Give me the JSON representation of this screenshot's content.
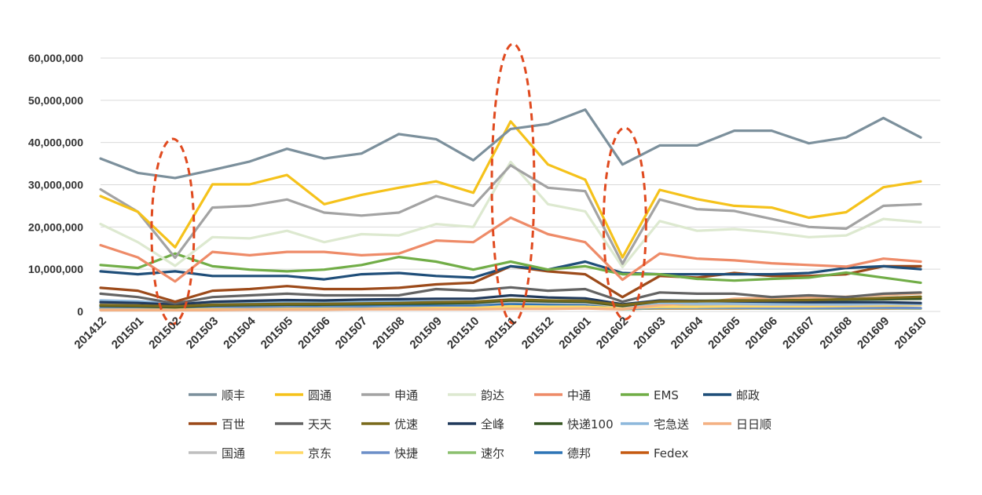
{
  "chart_data": {
    "type": "line",
    "title": "",
    "xlabel": "",
    "ylabel": "",
    "ylim": [
      0,
      60000000
    ],
    "yticks": [
      "0",
      "10,000,000",
      "20,000,000",
      "30,000,000",
      "40,000,000",
      "50,000,000",
      "60,000,000"
    ],
    "ytick_values": [
      0,
      10000000,
      20000000,
      30000000,
      40000000,
      50000000,
      60000000
    ],
    "grid": true,
    "legend_position": "bottom",
    "categories": [
      "201412",
      "201501",
      "201502",
      "201503",
      "201504",
      "201505",
      "201506",
      "201507",
      "201508",
      "201509",
      "201510",
      "201511",
      "201512",
      "201601",
      "201602",
      "201603",
      "201604",
      "201605",
      "201606",
      "201607",
      "201608",
      "201609",
      "201610"
    ],
    "highlighted_categories": [
      "201502",
      "201511",
      "201602"
    ],
    "series": [
      {
        "name": "顺丰",
        "color": "#7c909c",
        "values": [
          36200000,
          32800000,
          31600000,
          33500000,
          35500000,
          38500000,
          36200000,
          37400000,
          42000000,
          40800000,
          35800000,
          43200000,
          44400000,
          47800000,
          34800000,
          39300000,
          39300000,
          42800000,
          42800000,
          39800000,
          41200000,
          45800000,
          41200000
        ]
      },
      {
        "name": "圆通",
        "color": "#f5c21b",
        "values": [
          27300000,
          23600000,
          15200000,
          30100000,
          30100000,
          32300000,
          25400000,
          27600000,
          29300000,
          30800000,
          28100000,
          45000000,
          34800000,
          31200000,
          12800000,
          28800000,
          26600000,
          25000000,
          24600000,
          22200000,
          23500000,
          29400000,
          30800000
        ]
      },
      {
        "name": "申通",
        "color": "#a3a3a3",
        "values": [
          28900000,
          23600000,
          12700000,
          24600000,
          25000000,
          26500000,
          23400000,
          22700000,
          23400000,
          27300000,
          25000000,
          34600000,
          29300000,
          28500000,
          11300000,
          26500000,
          24200000,
          23800000,
          21900000,
          20000000,
          19600000,
          25000000,
          25400000
        ]
      },
      {
        "name": "韵达",
        "color": "#dde9d0",
        "values": [
          20700000,
          16400000,
          10800000,
          17600000,
          17300000,
          19100000,
          16400000,
          18300000,
          18000000,
          20700000,
          20000000,
          35400000,
          25400000,
          23700000,
          10500000,
          21400000,
          19100000,
          19500000,
          18700000,
          17600000,
          18000000,
          21900000,
          21100000
        ]
      },
      {
        "name": "中通",
        "color": "#ee8b68",
        "values": [
          15700000,
          12800000,
          7100000,
          14100000,
          13300000,
          14100000,
          14100000,
          13300000,
          13700000,
          16800000,
          16400000,
          22200000,
          18300000,
          16400000,
          7500000,
          13700000,
          12500000,
          12100000,
          11400000,
          11000000,
          10600000,
          12500000,
          11800000
        ]
      },
      {
        "name": "EMS",
        "color": "#71ad47",
        "values": [
          11000000,
          10300000,
          13700000,
          10700000,
          9900000,
          9500000,
          9900000,
          11000000,
          12900000,
          11800000,
          9900000,
          11800000,
          9900000,
          10700000,
          8800000,
          8800000,
          7700000,
          7300000,
          7700000,
          8000000,
          9200000,
          8000000,
          6800000
        ]
      },
      {
        "name": "邮政",
        "color": "#1f4e79",
        "values": [
          9500000,
          8800000,
          9500000,
          8400000,
          8400000,
          8400000,
          7600000,
          8800000,
          9100000,
          8400000,
          8000000,
          10700000,
          9900000,
          11800000,
          9100000,
          8800000,
          8800000,
          8800000,
          8800000,
          9100000,
          10300000,
          10700000,
          10000000
        ]
      },
      {
        "name": "百世",
        "color": "#9c4a1a",
        "values": [
          5600000,
          4900000,
          2300000,
          4900000,
          5300000,
          6000000,
          5300000,
          5300000,
          5600000,
          6400000,
          6800000,
          10700000,
          9500000,
          8800000,
          3400000,
          8400000,
          8000000,
          9100000,
          8400000,
          8400000,
          8800000,
          10700000,
          10700000
        ]
      },
      {
        "name": "天天",
        "color": "#636363",
        "values": [
          4200000,
          3400000,
          1900000,
          3400000,
          3800000,
          4200000,
          3800000,
          3800000,
          3800000,
          5300000,
          4900000,
          5700000,
          4900000,
          5300000,
          2300000,
          4500000,
          4200000,
          4200000,
          3400000,
          3800000,
          3400000,
          4200000,
          4500000
        ]
      },
      {
        "name": "优速",
        "color": "#7a6a1c",
        "values": [
          1500000,
          1400000,
          1200000,
          1600000,
          1700000,
          1800000,
          1800000,
          1900000,
          2000000,
          2200000,
          2300000,
          2800000,
          2600000,
          2500000,
          1500000,
          2400000,
          2400000,
          2500000,
          2600000,
          2700000,
          2900000,
          3200000,
          3500000
        ]
      },
      {
        "name": "全峰",
        "color": "#213a5c",
        "values": [
          2200000,
          2000000,
          1600000,
          2300000,
          2500000,
          2700000,
          2600000,
          2800000,
          2900000,
          3000000,
          3000000,
          3800000,
          3300000,
          3100000,
          1700000,
          2600000,
          2500000,
          2400000,
          2300000,
          2200000,
          2200000,
          2200000,
          2000000
        ]
      },
      {
        "name": "快递100",
        "color": "#375623",
        "values": [
          1300000,
          1200000,
          1000000,
          1400000,
          1500000,
          1600000,
          1600000,
          1700000,
          1800000,
          1900000,
          2000000,
          2600000,
          2400000,
          2300000,
          1300000,
          2400000,
          2500000,
          2600000,
          2600000,
          2700000,
          2800000,
          2900000,
          3000000
        ]
      },
      {
        "name": "宅急送",
        "color": "#8eb8dc",
        "values": [
          2600000,
          2400000,
          1800000,
          2200000,
          2200000,
          2300000,
          2200000,
          2200000,
          2300000,
          2300000,
          2200000,
          2600000,
          2400000,
          2300000,
          1400000,
          2000000,
          1900000,
          1900000,
          1800000,
          1800000,
          1800000,
          1900000,
          1800000
        ]
      },
      {
        "name": "日日顺",
        "color": "#f4b183",
        "values": [
          300000,
          300000,
          300000,
          300000,
          400000,
          400000,
          400000,
          500000,
          500000,
          500000,
          500000,
          600000,
          600000,
          700000,
          500000,
          1500000,
          2000000,
          3000000,
          3200000,
          3300000,
          3500000,
          3900000,
          4300000
        ]
      },
      {
        "name": "国通",
        "color": "#bfbfbf",
        "values": [
          1900000,
          1700000,
          1400000,
          1800000,
          1800000,
          1900000,
          1800000,
          1800000,
          1900000,
          1900000,
          1900000,
          2300000,
          2100000,
          2000000,
          1200000,
          1700000,
          1700000,
          1700000,
          1600000,
          1600000,
          1600000,
          1700000,
          1700000
        ]
      },
      {
        "name": "京东",
        "color": "#ffd966",
        "values": [
          400000,
          400000,
          400000,
          500000,
          500000,
          600000,
          600000,
          600000,
          700000,
          800000,
          800000,
          1200000,
          1100000,
          1100000,
          800000,
          1100000,
          1100000,
          1200000,
          1200000,
          1200000,
          1300000,
          1400000,
          1500000
        ]
      },
      {
        "name": "快捷",
        "color": "#6d8fc8",
        "values": [
          900000,
          800000,
          700000,
          900000,
          900000,
          1000000,
          900000,
          900000,
          1000000,
          1000000,
          1000000,
          1200000,
          1100000,
          1100000,
          600000,
          900000,
          900000,
          900000,
          800000,
          800000,
          800000,
          900000,
          800000
        ]
      },
      {
        "name": "速尔",
        "color": "#8cc06f",
        "values": [
          800000,
          700000,
          600000,
          800000,
          800000,
          800000,
          800000,
          800000,
          900000,
          900000,
          900000,
          1000000,
          900000,
          900000,
          500000,
          800000,
          800000,
          800000,
          700000,
          700000,
          700000,
          800000,
          700000
        ]
      },
      {
        "name": "德邦",
        "color": "#2e75b6",
        "values": [
          1400000,
          1300000,
          1000000,
          1400000,
          1400000,
          1500000,
          1500000,
          1500000,
          1600000,
          1600000,
          1600000,
          1800000,
          1700000,
          1700000,
          1100000,
          1600000,
          1600000,
          1600000,
          1600000,
          1600000,
          1700000,
          1700000,
          1700000
        ]
      },
      {
        "name": "Fedex",
        "color": "#c55a11",
        "values": [
          700000,
          700000,
          600000,
          700000,
          700000,
          700000,
          700000,
          700000,
          700000,
          700000,
          700000,
          800000,
          800000,
          800000,
          600000,
          700000,
          700000,
          700000,
          700000,
          700000,
          700000,
          700000,
          700000
        ]
      }
    ]
  }
}
